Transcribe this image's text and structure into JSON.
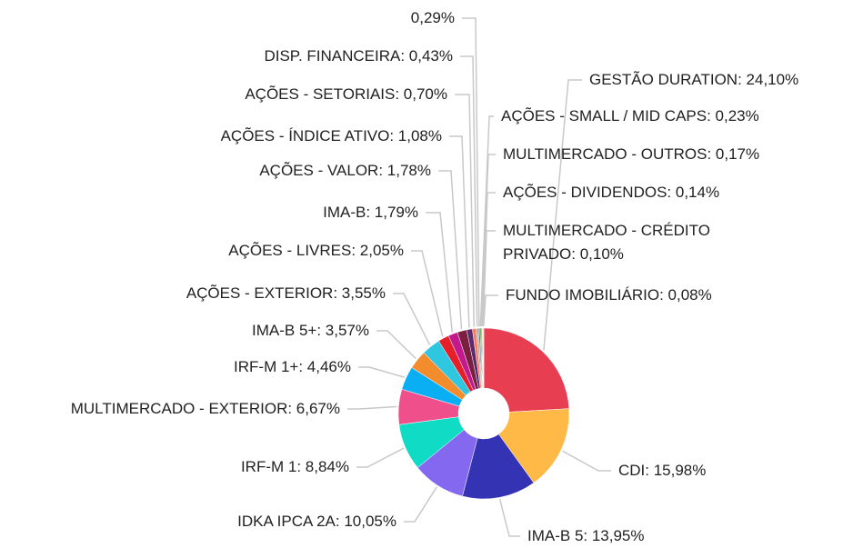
{
  "chart_data": {
    "type": "donut",
    "values": [
      24.1,
      15.98,
      13.95,
      10.05,
      8.84,
      6.67,
      4.46,
      3.57,
      3.55,
      2.05,
      1.79,
      1.78,
      1.08,
      0.7,
      0.43,
      0.29,
      0.23,
      0.17,
      0.14,
      0.1,
      0.08
    ],
    "value_labels": [
      "GESTÃO DURATION: 24,10%",
      "CDI: 15,98%",
      "IMA-B 5: 13,95%",
      "IDKA IPCA 2A: 10,05%",
      "IRF-M 1: 8,84%",
      "MULTIMERCADO - EXTERIOR: 6,67%",
      "IRF-M 1+: 4,46%",
      "IMA-B 5+: 3,57%",
      "AÇÕES - EXTERIOR: 3,55%",
      "AÇÕES - LIVRES: 2,05%",
      "IMA-B: 1,79%",
      "AÇÕES - VALOR: 1,78%",
      "AÇÕES - ÍNDICE ATIVO: 1,08%",
      "AÇÕES - SETORIAIS: 0,70%",
      "DISP. FINANCEIRA: 0,43%",
      "0,29%",
      "AÇÕES - SMALL / MID CAPS: 0,23%",
      "MULTIMERCADO - OUTROS: 0,17%",
      "AÇÕES - DIVIDENDOS: 0,14%",
      "MULTIMERCADO - CRÉDITO PRIVADO: 0,10%",
      "FUNDO IMOBILIÁRIO: 0,08%"
    ],
    "colors": [
      "#e83e52",
      "#ffb946",
      "#3433b3",
      "#8468f0",
      "#10dcc5",
      "#ef4f8a",
      "#0aaef2",
      "#f28c2c",
      "#2fc6e0",
      "#e6202a",
      "#c2198d",
      "#7a1f40",
      "#5a2c6e",
      "#ff7a5a",
      "#b0b0b0",
      "#6e6e6e",
      "#4f9d3a",
      "#2a6fbf",
      "#d9a21b",
      "#8fcf3c",
      "#4b4bd1"
    ]
  }
}
